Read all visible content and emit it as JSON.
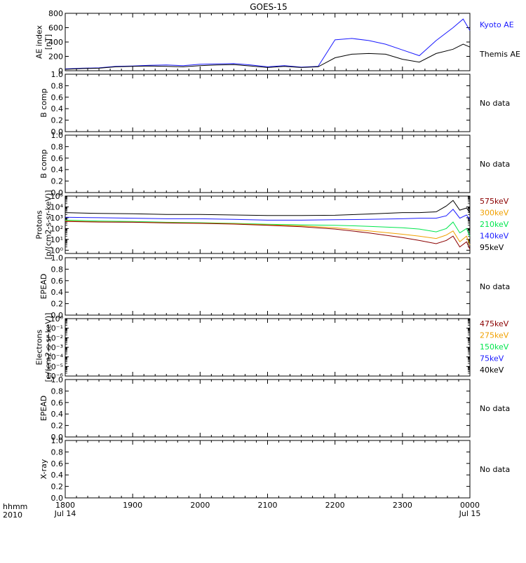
{
  "title": "GOES-15",
  "colors": {
    "axis": "#000000",
    "black": "#000000",
    "blue": "#1a1aff",
    "green": "#00e64d",
    "orange": "#f0a000",
    "darkred": "#8b0000"
  },
  "time_axis": {
    "row1_label": "hhmm",
    "row2_label": "2010",
    "ticks": [
      {
        "hhmm": "1800",
        "date": "Jul 14"
      },
      {
        "hhmm": "1900",
        "date": ""
      },
      {
        "hhmm": "2000",
        "date": ""
      },
      {
        "hhmm": "2100",
        "date": ""
      },
      {
        "hhmm": "2200",
        "date": ""
      },
      {
        "hhmm": "2300",
        "date": ""
      },
      {
        "hhmm": "0000",
        "date": "Jul 15"
      }
    ],
    "start_utc": "2010-07-14 18:00",
    "end_utc": "2010-07-15 00:00"
  },
  "chart_data": [
    {
      "type": "line",
      "ylabel": "AE index\n[nT]",
      "ylim": [
        0,
        800
      ],
      "ytick_labels": [
        "0",
        "200",
        "400",
        "600",
        "800"
      ],
      "x_unit": "UT hours from 18:00",
      "series": [
        {
          "name": "Kyoto AE",
          "color": "#1a1aff",
          "x": [
            0,
            0.25,
            0.5,
            0.75,
            1.0,
            1.25,
            1.5,
            1.75,
            2.0,
            2.25,
            2.5,
            2.75,
            3.0,
            3.25,
            3.5,
            3.75,
            4.0,
            4.25,
            4.5,
            4.75,
            5.0,
            5.25,
            5.5,
            5.75,
            5.9,
            6.0
          ],
          "y": [
            25,
            35,
            40,
            60,
            65,
            75,
            80,
            70,
            90,
            95,
            100,
            80,
            55,
            70,
            50,
            60,
            430,
            450,
            420,
            370,
            290,
            210,
            420,
            600,
            720,
            560
          ]
        },
        {
          "name": "Themis AE",
          "color": "#000000",
          "x": [
            0,
            0.25,
            0.5,
            0.75,
            1.0,
            1.25,
            1.5,
            1.75,
            2.0,
            2.25,
            2.5,
            2.75,
            3.0,
            3.25,
            3.5,
            3.75,
            4.0,
            4.25,
            4.5,
            4.75,
            5.0,
            5.25,
            5.5,
            5.75,
            5.9,
            6.0
          ],
          "y": [
            20,
            30,
            35,
            55,
            60,
            65,
            60,
            55,
            70,
            80,
            85,
            65,
            45,
            60,
            45,
            55,
            180,
            230,
            240,
            230,
            160,
            120,
            240,
            300,
            370,
            330
          ]
        }
      ]
    },
    {
      "type": "line",
      "ylabel": "B comp",
      "ylim": [
        0,
        1.0
      ],
      "ytick_labels": [
        "0.0",
        "0.2",
        "0.4",
        "0.6",
        "0.8",
        "1.0"
      ],
      "status": "No data",
      "series": []
    },
    {
      "type": "line",
      "ylabel": "B comp",
      "ylim": [
        0,
        1.0
      ],
      "ytick_labels": [
        "0.0",
        "0.2",
        "0.4",
        "0.6",
        "0.8",
        "1.0"
      ],
      "status": "No data",
      "series": []
    },
    {
      "type": "line",
      "ylabel": "Protons\n[p/(cm2-s-sr-keV)]",
      "yscale": "log",
      "ylim": [
        0.5,
        100000
      ],
      "ytick_labels": [
        "10⁰",
        "10¹",
        "10²",
        "10³",
        "10⁴",
        "10⁵"
      ],
      "series": [
        {
          "name": "95keV",
          "color": "#000000",
          "x": [
            0,
            0.5,
            1,
            1.5,
            2,
            2.5,
            3,
            3.5,
            4,
            4.5,
            5,
            5.25,
            5.5,
            5.65,
            5.75,
            5.85,
            5.95,
            6.0
          ],
          "y": [
            3000,
            2500,
            2300,
            2000,
            2000,
            1800,
            1600,
            1600,
            1700,
            2200,
            3000,
            3000,
            3500,
            12000,
            40000,
            5000,
            8000,
            3000
          ]
        },
        {
          "name": "140keV",
          "color": "#1a1aff",
          "x": [
            0,
            0.5,
            1,
            1.5,
            2,
            2.5,
            3,
            3.5,
            4,
            4.5,
            5,
            5.25,
            5.5,
            5.65,
            5.75,
            5.85,
            5.95,
            6.0
          ],
          "y": [
            1100,
            1000,
            900,
            800,
            800,
            700,
            600,
            600,
            650,
            700,
            800,
            900,
            900,
            1500,
            6000,
            900,
            1800,
            700
          ]
        },
        {
          "name": "210keV",
          "color": "#00e64d",
          "x": [
            0,
            0.5,
            1,
            1.5,
            2,
            2.5,
            3,
            3.5,
            4,
            4.5,
            5,
            5.25,
            5.5,
            5.65,
            5.75,
            5.85,
            5.95,
            6.0
          ],
          "y": [
            600,
            500,
            450,
            380,
            350,
            300,
            250,
            220,
            200,
            160,
            120,
            90,
            50,
            100,
            400,
            40,
            100,
            20
          ]
        },
        {
          "name": "300keV",
          "color": "#f0a000",
          "x": [
            0,
            0.5,
            1,
            1.5,
            2,
            2.5,
            3,
            3.5,
            4,
            4.5,
            5,
            5.25,
            5.5,
            5.65,
            5.75,
            5.85,
            5.95,
            6.0
          ],
          "y": [
            500,
            420,
            400,
            350,
            320,
            280,
            220,
            180,
            120,
            60,
            30,
            20,
            12,
            25,
            60,
            6,
            20,
            3
          ]
        },
        {
          "name": "575keV",
          "color": "#8b0000",
          "x": [
            0,
            0.5,
            1,
            1.5,
            2,
            2.5,
            3,
            3.5,
            4,
            4.5,
            5,
            5.25,
            5.5,
            5.65,
            5.75,
            5.85,
            5.95,
            6.0
          ],
          "y": [
            450,
            400,
            380,
            330,
            300,
            260,
            200,
            150,
            90,
            40,
            15,
            8,
            4,
            8,
            20,
            2,
            6,
            1.2
          ]
        }
      ]
    },
    {
      "type": "line",
      "ylabel": "EPEAD",
      "ylim": [
        0,
        1.0
      ],
      "ytick_labels": [
        "0.0",
        "0.2",
        "0.4",
        "0.6",
        "0.8",
        "1.0"
      ],
      "status": "No data",
      "series": []
    },
    {
      "type": "line",
      "ylabel": "Electrons\n[e/(cm2-s-sr-keV)]",
      "yscale": "log",
      "ylim": [
        1e-06,
        1
      ],
      "ytick_labels": [
        "10⁻⁶",
        "10⁻⁵",
        "10⁻⁴",
        "10⁻³",
        "10⁻²",
        "10⁻¹",
        "10⁰"
      ],
      "legend": [
        {
          "name": "475keV",
          "color": "#8b0000"
        },
        {
          "name": "275keV",
          "color": "#f0a000"
        },
        {
          "name": "150keV",
          "color": "#00e64d"
        },
        {
          "name": "75keV",
          "color": "#1a1aff"
        },
        {
          "name": "40keV",
          "color": "#000000"
        }
      ],
      "series": []
    },
    {
      "type": "line",
      "ylabel": "EPEAD",
      "ylim": [
        0,
        1.0
      ],
      "ytick_labels": [
        "0.0",
        "0.2",
        "0.4",
        "0.6",
        "0.8",
        "1.0"
      ],
      "status": "No data",
      "series": []
    },
    {
      "type": "line",
      "ylabel": "X-ray",
      "ylim": [
        0,
        1.0
      ],
      "ytick_labels": [
        "0.0",
        "0.2",
        "0.4",
        "0.6",
        "0.8",
        "1.0"
      ],
      "status": "No data",
      "series": []
    }
  ]
}
